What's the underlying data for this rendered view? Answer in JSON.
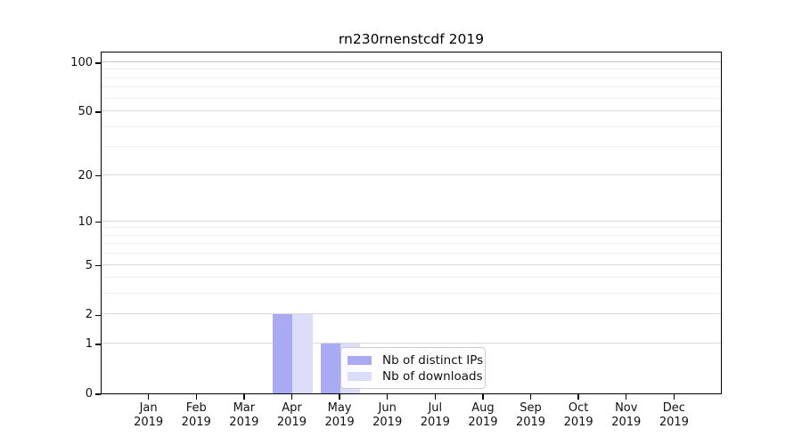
{
  "chart_data": {
    "type": "bar",
    "title": "rn230rnenstcdf 2019",
    "categories": [
      "Jan",
      "Feb",
      "Mar",
      "Apr",
      "May",
      "Jun",
      "Jul",
      "Aug",
      "Sep",
      "Oct",
      "Nov",
      "Dec"
    ],
    "year_label": "2019",
    "series": [
      {
        "name": "Nb of distinct IPs",
        "color": "#a9aaf3",
        "values": [
          0,
          0,
          0,
          2,
          1,
          0,
          0,
          0,
          0,
          0,
          0,
          0
        ]
      },
      {
        "name": "Nb of downloads",
        "color": "#dcddfa",
        "values": [
          0,
          0,
          0,
          2,
          1,
          0,
          0,
          0,
          0,
          0,
          0,
          0
        ]
      }
    ],
    "yscale": "log1p",
    "ylim": [
      0,
      117.6
    ],
    "y_ticks": [
      0,
      1,
      2,
      5,
      10,
      20,
      50,
      100
    ],
    "y_minor_ticks": [
      3,
      4,
      6,
      7,
      8,
      9,
      30,
      40,
      60,
      70,
      80,
      90
    ],
    "grid": true,
    "legend_position": "lower center"
  },
  "colors": {
    "grid_major": "#d9d9d9",
    "grid_minor": "#efefef",
    "grid_dark": "#c6c6c6",
    "axis": "#000000",
    "text": "#111111",
    "legend_border": "#cccccc"
  }
}
